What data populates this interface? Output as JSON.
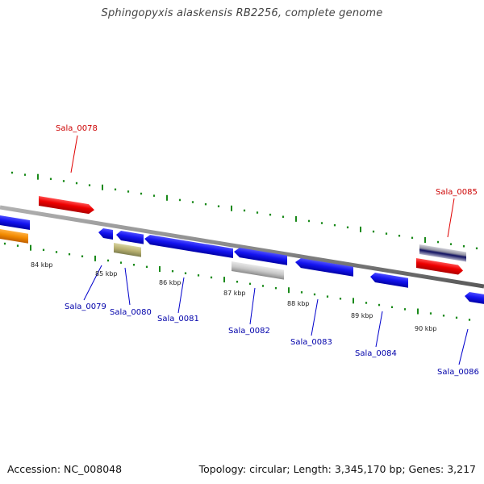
{
  "header": {
    "title": "Sphingopyxis alaskensis RB2256, complete genome"
  },
  "footer": {
    "accession": "Accession: NC_008048",
    "summary": "Topology: circular; Length: 3,345,170 bp; Genes: 3,217"
  },
  "scale_labels": [
    "84 kbp",
    "85 kbp",
    "86 kbp",
    "87 kbp",
    "88 kbp",
    "89 kbp",
    "90 kbp"
  ],
  "genes": [
    {
      "label": "Sala_0078",
      "strand": "forward",
      "color": "#e00000"
    },
    {
      "label": "Sala_0085",
      "strand": "forward",
      "color": "#e00000"
    },
    {
      "label": "Sala_0079",
      "strand": "reverse",
      "color": "#1010e0"
    },
    {
      "label": "Sala_0080",
      "strand": "reverse",
      "color": "#1010e0"
    },
    {
      "label": "Sala_0081",
      "strand": "reverse",
      "color": "#1010e0"
    },
    {
      "label": "Sala_0082",
      "strand": "reverse",
      "color": "#1010e0"
    },
    {
      "label": "Sala_0083",
      "strand": "reverse",
      "color": "#1010e0"
    },
    {
      "label": "Sala_0084",
      "strand": "reverse",
      "color": "#1010e0"
    },
    {
      "label": "Sala_0086",
      "strand": "reverse",
      "color": "#1010e0"
    }
  ],
  "colors": {
    "forward_cds": "#e00000",
    "reverse_cds": "#1010e0",
    "other_feature": "#f08c00",
    "misc_feature_olive": "#b8b070",
    "misc_feature_gray": "#c8c8c8",
    "backbone": "#8a8a8a",
    "ticks": "#1a8a1a",
    "forward_label": "#cc0000",
    "reverse_label": "#0000aa"
  }
}
